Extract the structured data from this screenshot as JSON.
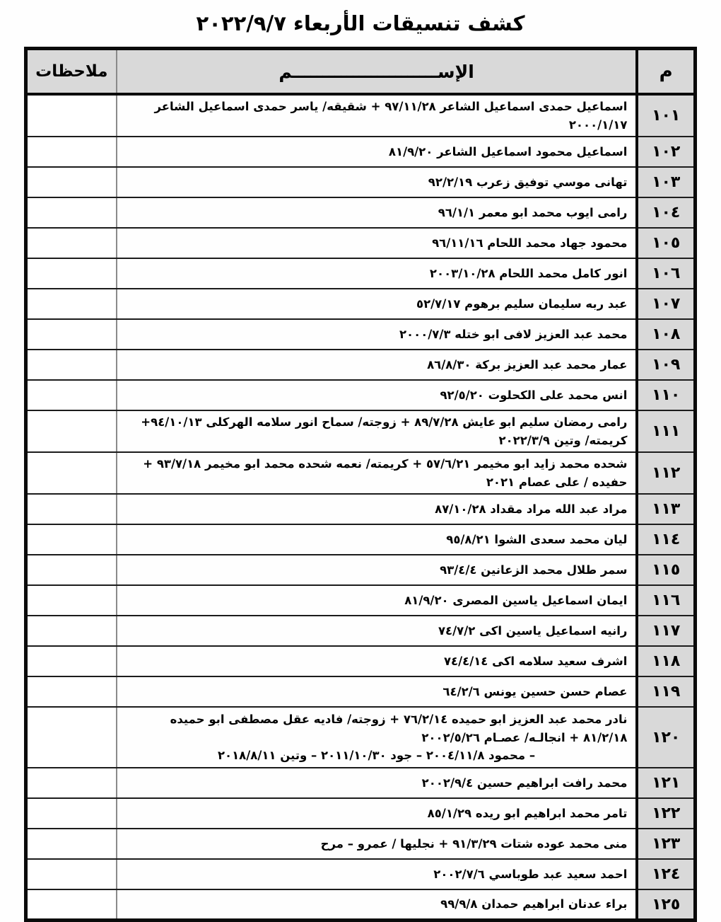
{
  "title": "كشف تنسيقات الأربعاء ٢٠٢٢/٩/٧",
  "table": {
    "headers": {
      "number": "م",
      "name": "الإســــــــــــــــــــــــم",
      "notes": "ملاحظات"
    },
    "rows": [
      {
        "number": "١٠١",
        "name": "اسماعيل حمدى اسماعيل الشاعر ٩٧/١١/٢٨ + شقيقه/ ياسر حمدى اسماعيل الشاعر ٢٠٠٠/١/١٧",
        "notes": ""
      },
      {
        "number": "١٠٢",
        "name": "اسماعيل محمود اسماعيل الشاعر ٨١/٩/٢٠",
        "notes": ""
      },
      {
        "number": "١٠٣",
        "name": "تهانى موسي توفيق زعرب ٩٢/٢/١٩",
        "notes": ""
      },
      {
        "number": "١٠٤",
        "name": "رامى ايوب محمد ابو معمر ٩٦/١/١",
        "notes": ""
      },
      {
        "number": "١٠٥",
        "name": "محمود جهاد محمد اللحام ٩٦/١١/١٦",
        "notes": ""
      },
      {
        "number": "١٠٦",
        "name": "انور كامل محمد اللحام  ٢٠٠٣/١٠/٢٨",
        "notes": ""
      },
      {
        "number": "١٠٧",
        "name": "عبد ربه سليمان سليم برهوم ٥٢/٧/١٧",
        "notes": ""
      },
      {
        "number": "١٠٨",
        "name": "محمد عبد العزيز لافى ابو ختله ٢٠٠٠/٧/٣",
        "notes": ""
      },
      {
        "number": "١٠٩",
        "name": "عمار محمد عبد العزيز بركة ٨٦/٨/٣٠",
        "notes": ""
      },
      {
        "number": "١١٠",
        "name": "انس محمد على الكحلوت ٩٢/٥/٢٠",
        "notes": ""
      },
      {
        "number": "١١١",
        "name": "رامى رمضان سليم ابو عايش ٨٩/٧/٢٨ + زوجته/ سماح انور سلامه الهركلى ٩٤/١٠/١٣+ كريمته/ وتين ٢٠٢٢/٣/٩",
        "notes": ""
      },
      {
        "number": "١١٢",
        "name": "شحده محمد زايد ابو مخيمر ٥٧/٦/٢١ + كريمته/ نعمه شحده محمد ابو مخيمر ٩٣/٧/١٨ + حفيده / على عصام ٢٠٢١",
        "notes": ""
      },
      {
        "number": "١١٣",
        "name": "مراد عبد الله مراد مقداد ٨٧/١٠/٢٨",
        "notes": ""
      },
      {
        "number": "١١٤",
        "name": "ليان محمد سعدى الشوا ٩٥/٨/٢١",
        "notes": ""
      },
      {
        "number": "١١٥",
        "name": "سمر طلال محمد الزعانين ٩٣/٤/٤",
        "notes": ""
      },
      {
        "number": "١١٦",
        "name": "ايمان اسماعيل ياسين المصرى ٨١/٩/٢٠",
        "notes": ""
      },
      {
        "number": "١١٧",
        "name": "رانيه اسماعيل ياسين اكى ٧٤/٧/٢",
        "notes": ""
      },
      {
        "number": "١١٨",
        "name": "اشرف سعيد سلامه اكى ٧٤/٤/١٤",
        "notes": ""
      },
      {
        "number": "١١٩",
        "name": "عصام حسن حسين يونس  ٦٤/٢/٦",
        "notes": ""
      },
      {
        "number": "١٢٠",
        "name": "نادر محمد عبد العزيز ابو حميده ٧٦/٢/١٤ + زوجته/ فاديه عقل مصطفى ابو حميده ٨١/٢/١٨ + انجالـه/ عصـام ٢٠٠٢/٥/٢٦",
        "name_line2": "– محمود ٢٠٠٤/١١/٨ – جود ٢٠١١/١٠/٣٠ – وتين ٢٠١٨/٨/١١",
        "notes": ""
      },
      {
        "number": "١٢١",
        "name": "محمد رافت ابراهيم حسين ٢٠٠٢/٩/٤",
        "notes": ""
      },
      {
        "number": "١٢٢",
        "name": "تامر محمد ابراهيم ابو ريده ٨٥/١/٢٩",
        "notes": ""
      },
      {
        "number": "١٢٣",
        "name": "منى محمد عوده شتات ٩١/٣/٢٩ + نجليها / عمرو – مرح",
        "notes": ""
      },
      {
        "number": "١٢٤",
        "name": "احمد سعيد عبد طوباسي ٢٠٠٢/٧/٦",
        "notes": ""
      },
      {
        "number": "١٢٥",
        "name": "براء عدنان ابراهيم حمدان ٩٩/٩/٨",
        "notes": ""
      }
    ]
  }
}
